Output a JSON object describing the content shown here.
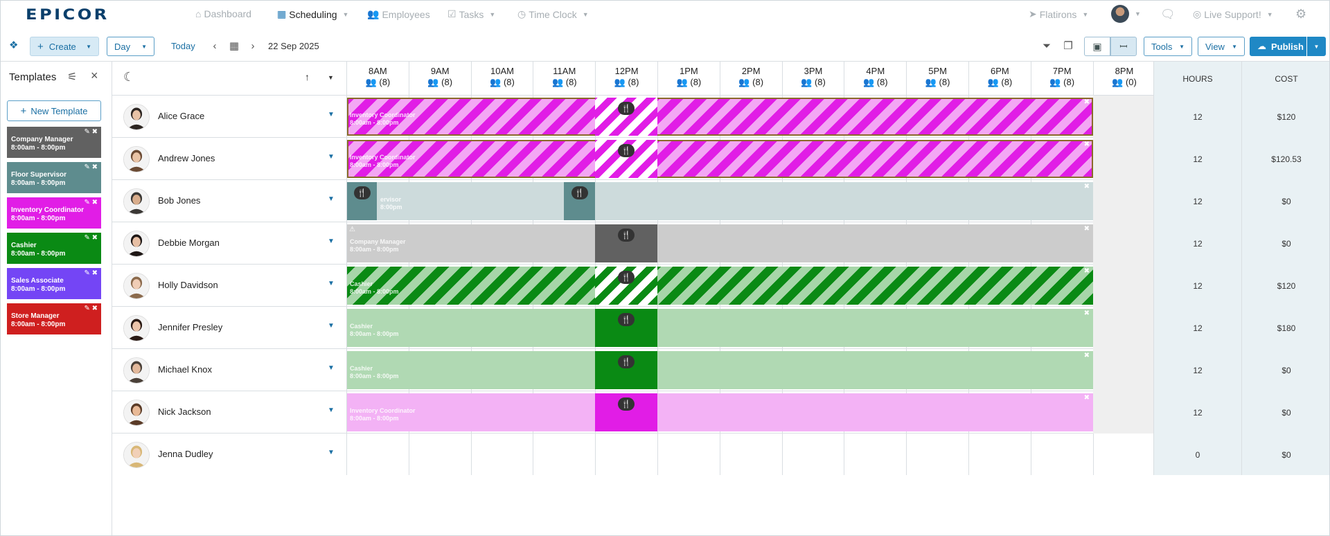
{
  "app": {
    "logo": "EPICOR"
  },
  "nav": {
    "items": [
      {
        "label": "Dashboard",
        "icon": "home-icon"
      },
      {
        "label": "Scheduling",
        "icon": "calendar-icon",
        "active": true
      },
      {
        "label": "Employees",
        "icon": "users-icon"
      },
      {
        "label": "Tasks",
        "icon": "tasks-icon"
      },
      {
        "label": "Time Clock",
        "icon": "clock-icon"
      }
    ],
    "location": "Flatirons",
    "support": "Live Support!"
  },
  "toolbar": {
    "create": "Create",
    "view_mode": "Day",
    "today": "Today",
    "date": "22 Sep 2025",
    "tools": "Tools",
    "view": "View",
    "publish": "Publish"
  },
  "sidebar": {
    "title": "Templates",
    "new_template": "New Template",
    "templates": [
      {
        "name": "Company Manager",
        "time": "8:00am - 8:00pm",
        "color": "#616161"
      },
      {
        "name": "Floor Supervisor",
        "time": "8:00am - 8:00pm",
        "color": "#5e8c8e"
      },
      {
        "name": "Inventory Coordinator",
        "time": "8:00am - 8:00pm",
        "color": "#e11de6"
      },
      {
        "name": "Cashier",
        "time": "8:00am - 8:00pm",
        "color": "#0a8a14"
      },
      {
        "name": "Sales Associate",
        "time": "8:00am - 8:00pm",
        "color": "#7445f5"
      },
      {
        "name": "Store Manager",
        "time": "8:00am - 8:00pm",
        "color": "#cf1f1f"
      }
    ]
  },
  "grid": {
    "hours": [
      {
        "label": "8AM",
        "count": "(8)"
      },
      {
        "label": "9AM",
        "count": "(8)"
      },
      {
        "label": "10AM",
        "count": "(8)"
      },
      {
        "label": "11AM",
        "count": "(8)"
      },
      {
        "label": "12PM",
        "count": "(8)"
      },
      {
        "label": "1PM",
        "count": "(8)"
      },
      {
        "label": "2PM",
        "count": "(8)"
      },
      {
        "label": "3PM",
        "count": "(8)"
      },
      {
        "label": "4PM",
        "count": "(8)"
      },
      {
        "label": "5PM",
        "count": "(8)"
      },
      {
        "label": "6PM",
        "count": "(8)"
      },
      {
        "label": "7PM",
        "count": "(8)"
      },
      {
        "label": "8PM",
        "count": "(0)"
      }
    ],
    "hours_header": "HOURS",
    "cost_header": "COST"
  },
  "employees": [
    {
      "name": "Alice Grace",
      "hours": "12",
      "cost": "$120",
      "shift": "Inventory Coordinator",
      "shift_time": "8:00am - 8:00pm"
    },
    {
      "name": "Andrew Jones",
      "hours": "12",
      "cost": "$120.53",
      "shift": "Inventory Coordinator",
      "shift_time": "8:00am - 8:00pm"
    },
    {
      "name": "Bob Jones",
      "hours": "12",
      "cost": "$0",
      "shift": "ervisor",
      "shift_time": "8:00pm"
    },
    {
      "name": "Debbie Morgan",
      "hours": "12",
      "cost": "$0",
      "shift": "Company Manager",
      "shift_time": "8:00am - 8:00pm"
    },
    {
      "name": "Holly Davidson",
      "hours": "12",
      "cost": "$120",
      "shift": "Cashier",
      "shift_time": "8:00am - 8:00pm"
    },
    {
      "name": "Jennifer Presley",
      "hours": "12",
      "cost": "$180",
      "shift": "Cashier",
      "shift_time": "8:00am - 8:00pm"
    },
    {
      "name": "Michael Knox",
      "hours": "12",
      "cost": "$0",
      "shift": "Cashier",
      "shift_time": "8:00am - 8:00pm"
    },
    {
      "name": "Nick Jackson",
      "hours": "12",
      "cost": "$0",
      "shift": "Inventory Coordinator",
      "shift_time": "8:00am - 8:00pm"
    },
    {
      "name": "Jenna Dudley",
      "hours": "0",
      "cost": "$0"
    }
  ]
}
